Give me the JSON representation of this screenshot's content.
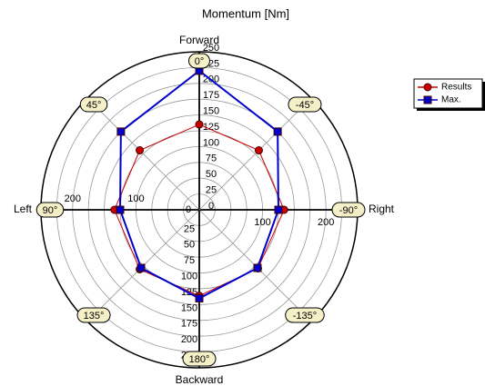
{
  "chart_data": {
    "type": "polar",
    "title": "Momentum [Nm]",
    "annotations": {
      "top": "Forward",
      "left": "Left",
      "right": "Right",
      "bottom": "Backward"
    },
    "thetaticks": [
      {
        "value": 0,
        "label": "0°"
      },
      {
        "value": 45,
        "label": "45°"
      },
      {
        "value": 90,
        "label": "90°"
      },
      {
        "value": 135,
        "label": "135°"
      },
      {
        "value": 180,
        "label": "180°"
      },
      {
        "value": -135,
        "label": "-135°"
      },
      {
        "value": -90,
        "label": "-90°"
      },
      {
        "value": -45,
        "label": "-45°"
      }
    ],
    "rlim": [
      0,
      250
    ],
    "rticks": [
      0,
      25,
      50,
      75,
      100,
      125,
      150,
      175,
      200,
      225,
      250
    ],
    "grid": true,
    "legend": "upper right",
    "series": [
      {
        "name": "Results",
        "color": "#cc0000",
        "marker": "circle",
        "values": [
          135,
          133,
          134,
          133,
          136,
          131,
          134,
          133
        ]
      },
      {
        "name": "Max.",
        "color": "#0000cc",
        "marker": "square",
        "values": [
          220,
          175,
          125,
          130,
          140,
          130,
          125,
          175
        ]
      }
    ]
  }
}
